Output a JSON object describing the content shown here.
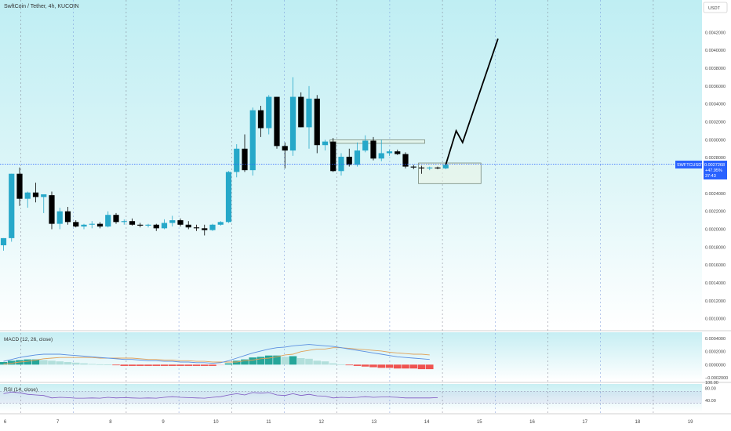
{
  "header": {
    "title": "SwftCoin / Tether, 4h, KUCOIN",
    "currency": "USDT"
  },
  "price_badge": {
    "symbol": "SWFTCUSDT",
    "price": "0.0027268",
    "change": "+47.95%",
    "timer": "37:43"
  },
  "panes": {
    "macd_label": "MACD (12, 26, close)",
    "rsi_label": "RSI (14, close)"
  },
  "colors": {
    "up": "#26a8c9",
    "down": "#000000",
    "bg_top": "#c6eef3",
    "bg_bottom": "#ffffff",
    "macd_line": "#5b8fe0",
    "signal_line": "#e0a25a",
    "hist_pos": "#26a69a",
    "hist_pos_light": "#b2dfdb",
    "hist_neg": "#ef5350",
    "hist_neg_light": "#ffcdd2",
    "rsi_line": "#7e57c2",
    "badge": "#2962ff"
  },
  "chart_data": [
    {
      "type": "candlestick",
      "title": "SwftCoin / Tether, 4h, KUCOIN",
      "x_ticks": [
        "6",
        "7",
        "8",
        "9",
        "10",
        "11",
        "12",
        "13",
        "14",
        "15",
        "16",
        "17",
        "18",
        "19"
      ],
      "y_ticks": [
        "0.0042000",
        "0.0040000",
        "0.0038000",
        "0.0036000",
        "0.0034000",
        "0.0032000",
        "0.0030000",
        "0.0028000",
        "0.0026000",
        "0.0024000",
        "0.0022000",
        "0.0020000",
        "0.0018000",
        "0.0016000",
        "0.0014000",
        "0.0012000",
        "0.0010000"
      ],
      "ylim": [
        0.0009,
        0.0043
      ],
      "candles": [
        {
          "o": 0.00182,
          "h": 0.0019,
          "l": 0.00176,
          "c": 0.0019
        },
        {
          "o": 0.0019,
          "h": 0.00262,
          "l": 0.00186,
          "c": 0.00262
        },
        {
          "o": 0.00262,
          "h": 0.00269,
          "l": 0.00226,
          "c": 0.00234
        },
        {
          "o": 0.00234,
          "h": 0.00242,
          "l": 0.00224,
          "c": 0.00241
        },
        {
          "o": 0.00241,
          "h": 0.00252,
          "l": 0.0023,
          "c": 0.00236
        },
        {
          "o": 0.00236,
          "h": 0.00238,
          "l": 0.00218,
          "c": 0.00239
        },
        {
          "o": 0.00238,
          "h": 0.00242,
          "l": 0.002,
          "c": 0.00206
        },
        {
          "o": 0.00206,
          "h": 0.00224,
          "l": 0.002,
          "c": 0.0022
        },
        {
          "o": 0.0022,
          "h": 0.00225,
          "l": 0.00205,
          "c": 0.00208
        },
        {
          "o": 0.00208,
          "h": 0.0021,
          "l": 0.00202,
          "c": 0.00203
        },
        {
          "o": 0.00203,
          "h": 0.00206,
          "l": 0.002,
          "c": 0.00205
        },
        {
          "o": 0.00205,
          "h": 0.00209,
          "l": 0.00201,
          "c": 0.00206
        },
        {
          "o": 0.00206,
          "h": 0.00208,
          "l": 0.00201,
          "c": 0.00203
        },
        {
          "o": 0.00203,
          "h": 0.0022,
          "l": 0.00202,
          "c": 0.00216
        },
        {
          "o": 0.00216,
          "h": 0.00218,
          "l": 0.00206,
          "c": 0.00208
        },
        {
          "o": 0.00208,
          "h": 0.00211,
          "l": 0.00205,
          "c": 0.00209
        },
        {
          "o": 0.00209,
          "h": 0.00212,
          "l": 0.00204,
          "c": 0.00205
        },
        {
          "o": 0.00205,
          "h": 0.00207,
          "l": 0.00202,
          "c": 0.00204
        },
        {
          "o": 0.00204,
          "h": 0.00206,
          "l": 0.00202,
          "c": 0.00205
        },
        {
          "o": 0.00205,
          "h": 0.00206,
          "l": 0.00198,
          "c": 0.00201
        },
        {
          "o": 0.00201,
          "h": 0.00211,
          "l": 0.002,
          "c": 0.00207
        },
        {
          "o": 0.00207,
          "h": 0.00215,
          "l": 0.00203,
          "c": 0.0021
        },
        {
          "o": 0.0021,
          "h": 0.00212,
          "l": 0.00203,
          "c": 0.00205
        },
        {
          "o": 0.00205,
          "h": 0.00209,
          "l": 0.002,
          "c": 0.00202
        },
        {
          "o": 0.00202,
          "h": 0.00205,
          "l": 0.00198,
          "c": 0.00201
        },
        {
          "o": 0.00201,
          "h": 0.00205,
          "l": 0.00193,
          "c": 0.00199
        },
        {
          "o": 0.00199,
          "h": 0.00206,
          "l": 0.00198,
          "c": 0.00205
        },
        {
          "o": 0.00205,
          "h": 0.00209,
          "l": 0.00204,
          "c": 0.00208
        },
        {
          "o": 0.00208,
          "h": 0.00265,
          "l": 0.00207,
          "c": 0.00264
        },
        {
          "o": 0.00264,
          "h": 0.00295,
          "l": 0.00258,
          "c": 0.0029
        },
        {
          "o": 0.0029,
          "h": 0.00306,
          "l": 0.00264,
          "c": 0.00266
        },
        {
          "o": 0.00266,
          "h": 0.00336,
          "l": 0.0026,
          "c": 0.00333
        },
        {
          "o": 0.00333,
          "h": 0.00338,
          "l": 0.00303,
          "c": 0.00313
        },
        {
          "o": 0.00313,
          "h": 0.0035,
          "l": 0.00306,
          "c": 0.00348
        },
        {
          "o": 0.00348,
          "h": 0.00348,
          "l": 0.0029,
          "c": 0.00293
        },
        {
          "o": 0.00293,
          "h": 0.00297,
          "l": 0.00268,
          "c": 0.00288
        },
        {
          "o": 0.00288,
          "h": 0.0037,
          "l": 0.00282,
          "c": 0.00348
        },
        {
          "o": 0.00348,
          "h": 0.00353,
          "l": 0.00314,
          "c": 0.00314
        },
        {
          "o": 0.00314,
          "h": 0.0036,
          "l": 0.0029,
          "c": 0.00346
        },
        {
          "o": 0.00346,
          "h": 0.0035,
          "l": 0.00285,
          "c": 0.00294
        },
        {
          "o": 0.00294,
          "h": 0.003,
          "l": 0.00288,
          "c": 0.00298
        },
        {
          "o": 0.00298,
          "h": 0.00302,
          "l": 0.00264,
          "c": 0.00265
        },
        {
          "o": 0.00265,
          "h": 0.00285,
          "l": 0.0026,
          "c": 0.00281
        },
        {
          "o": 0.00281,
          "h": 0.0029,
          "l": 0.0027,
          "c": 0.00272
        },
        {
          "o": 0.00272,
          "h": 0.00297,
          "l": 0.0027,
          "c": 0.00288
        },
        {
          "o": 0.00288,
          "h": 0.00305,
          "l": 0.00286,
          "c": 0.00299
        },
        {
          "o": 0.00299,
          "h": 0.00303,
          "l": 0.00277,
          "c": 0.00279
        },
        {
          "o": 0.00279,
          "h": 0.003,
          "l": 0.00276,
          "c": 0.00285
        },
        {
          "o": 0.00285,
          "h": 0.00289,
          "l": 0.00282,
          "c": 0.00287
        },
        {
          "o": 0.00287,
          "h": 0.00289,
          "l": 0.00283,
          "c": 0.00284
        },
        {
          "o": 0.00284,
          "h": 0.00286,
          "l": 0.00268,
          "c": 0.0027
        },
        {
          "o": 0.0027,
          "h": 0.00272,
          "l": 0.00267,
          "c": 0.00269
        },
        {
          "o": 0.00269,
          "h": 0.00271,
          "l": 0.00262,
          "c": 0.00268
        },
        {
          "o": 0.00268,
          "h": 0.0027,
          "l": 0.00266,
          "c": 0.00269
        },
        {
          "o": 0.00269,
          "h": 0.0027,
          "l": 0.00267,
          "c": 0.00268
        },
        {
          "o": 0.00268,
          "h": 0.00272,
          "l": 0.00267,
          "c": 0.00272
        }
      ],
      "zones": [
        {
          "x0": 52,
          "x1": 59,
          "y0": 0.00251,
          "y1": 0.00274
        },
        {
          "x0": 41,
          "x1": 52,
          "y0": 0.00296,
          "y1": 0.003
        }
      ],
      "projection": [
        {
          "i": 55,
          "p": 0.00272
        },
        {
          "i": 56.3,
          "p": 0.0031
        },
        {
          "i": 57.1,
          "p": 0.00297
        },
        {
          "i": 61.5,
          "p": 0.00413
        }
      ],
      "current_price": 0.0027268
    },
    {
      "type": "bar",
      "title": "MACD (12, 26, close)",
      "y_ticks": [
        "0.0004000",
        "0.0002000",
        "0.0000000",
        "−0.0002000"
      ],
      "ylim": [
        -0.00025,
        0.00045
      ],
      "histogram": [
        4e-05,
        6e-05,
        7e-05,
        8e-05,
        8e-05,
        7e-05,
        6e-05,
        5e-05,
        4e-05,
        3e-05,
        2e-05,
        1e-05,
        5e-06,
        1e-06,
        -1e-05,
        -2e-05,
        -2e-05,
        -2e-05,
        -2e-05,
        -2e-05,
        -2e-05,
        -2e-05,
        -2e-05,
        -2e-05,
        -2e-05,
        -2e-05,
        -2e-05,
        -1e-05,
        2e-05,
        6e-05,
        8e-05,
        0.00011,
        0.00012,
        0.00014,
        0.00014,
        0.00012,
        0.00013,
        0.0001,
        9e-05,
        6e-05,
        5e-05,
        2e-05,
        5e-06,
        -1e-05,
        -2e-05,
        -3e-05,
        -4e-05,
        -5e-05,
        -5e-05,
        -6e-05,
        -6e-05,
        -6e-05,
        -7e-05,
        -7e-05
      ],
      "macd": [
        5e-05,
        8e-05,
        0.00011,
        0.00013,
        0.00015,
        0.00016,
        0.00016,
        0.00016,
        0.00015,
        0.00014,
        0.00013,
        0.00012,
        0.00011,
        0.0001,
        9e-05,
        8e-05,
        8e-05,
        7e-05,
        6e-05,
        6e-05,
        5e-05,
        5e-05,
        4e-05,
        4e-05,
        3e-05,
        3e-05,
        2e-05,
        3e-05,
        6e-05,
        0.0001,
        0.00014,
        0.00018,
        0.00021,
        0.00024,
        0.00026,
        0.00027,
        0.00029,
        0.0003,
        0.00031,
        0.0003,
        0.00029,
        0.00028,
        0.00026,
        0.00024,
        0.00022,
        0.0002,
        0.00018,
        0.00016,
        0.00014,
        0.00012,
        0.00011,
        0.0001,
        9e-05,
        8e-05
      ],
      "signal": [
        1e-05,
        2e-05,
        4e-05,
        5e-05,
        7e-05,
        9e-05,
        0.0001,
        0.00011,
        0.00011,
        0.00011,
        0.00011,
        0.00011,
        0.0001,
        0.0001,
        0.0001,
        0.0001,
        0.0001,
        9e-05,
        8e-05,
        8e-05,
        7e-05,
        7e-05,
        6e-05,
        6e-05,
        5e-05,
        5e-05,
        4e-05,
        4e-05,
        4e-05,
        4e-05,
        6e-05,
        7e-05,
        9e-05,
        0.0001,
        0.00012,
        0.00015,
        0.00016,
        0.0002,
        0.00022,
        0.00024,
        0.00024,
        0.00026,
        0.00026,
        0.00025,
        0.00024,
        0.00023,
        0.00022,
        0.00021,
        0.00019,
        0.00018,
        0.00017,
        0.00016,
        0.00016,
        0.00015
      ]
    },
    {
      "type": "line",
      "title": "RSI (14, close)",
      "y_ticks": [
        "100.00",
        "80.00",
        "40.00"
      ],
      "ylim": [
        0,
        100
      ],
      "band": [
        30,
        70
      ],
      "values": [
        62,
        68,
        65,
        60,
        58,
        56,
        48,
        50,
        49,
        47,
        47,
        48,
        47,
        50,
        48,
        49,
        48,
        47,
        48,
        47,
        50,
        52,
        50,
        49,
        48,
        47,
        50,
        52,
        58,
        62,
        58,
        66,
        64,
        66,
        58,
        56,
        62,
        56,
        60,
        55,
        54,
        48,
        50,
        49,
        50,
        52,
        50,
        51,
        51,
        50,
        48,
        48,
        48,
        48,
        49
      ]
    }
  ]
}
